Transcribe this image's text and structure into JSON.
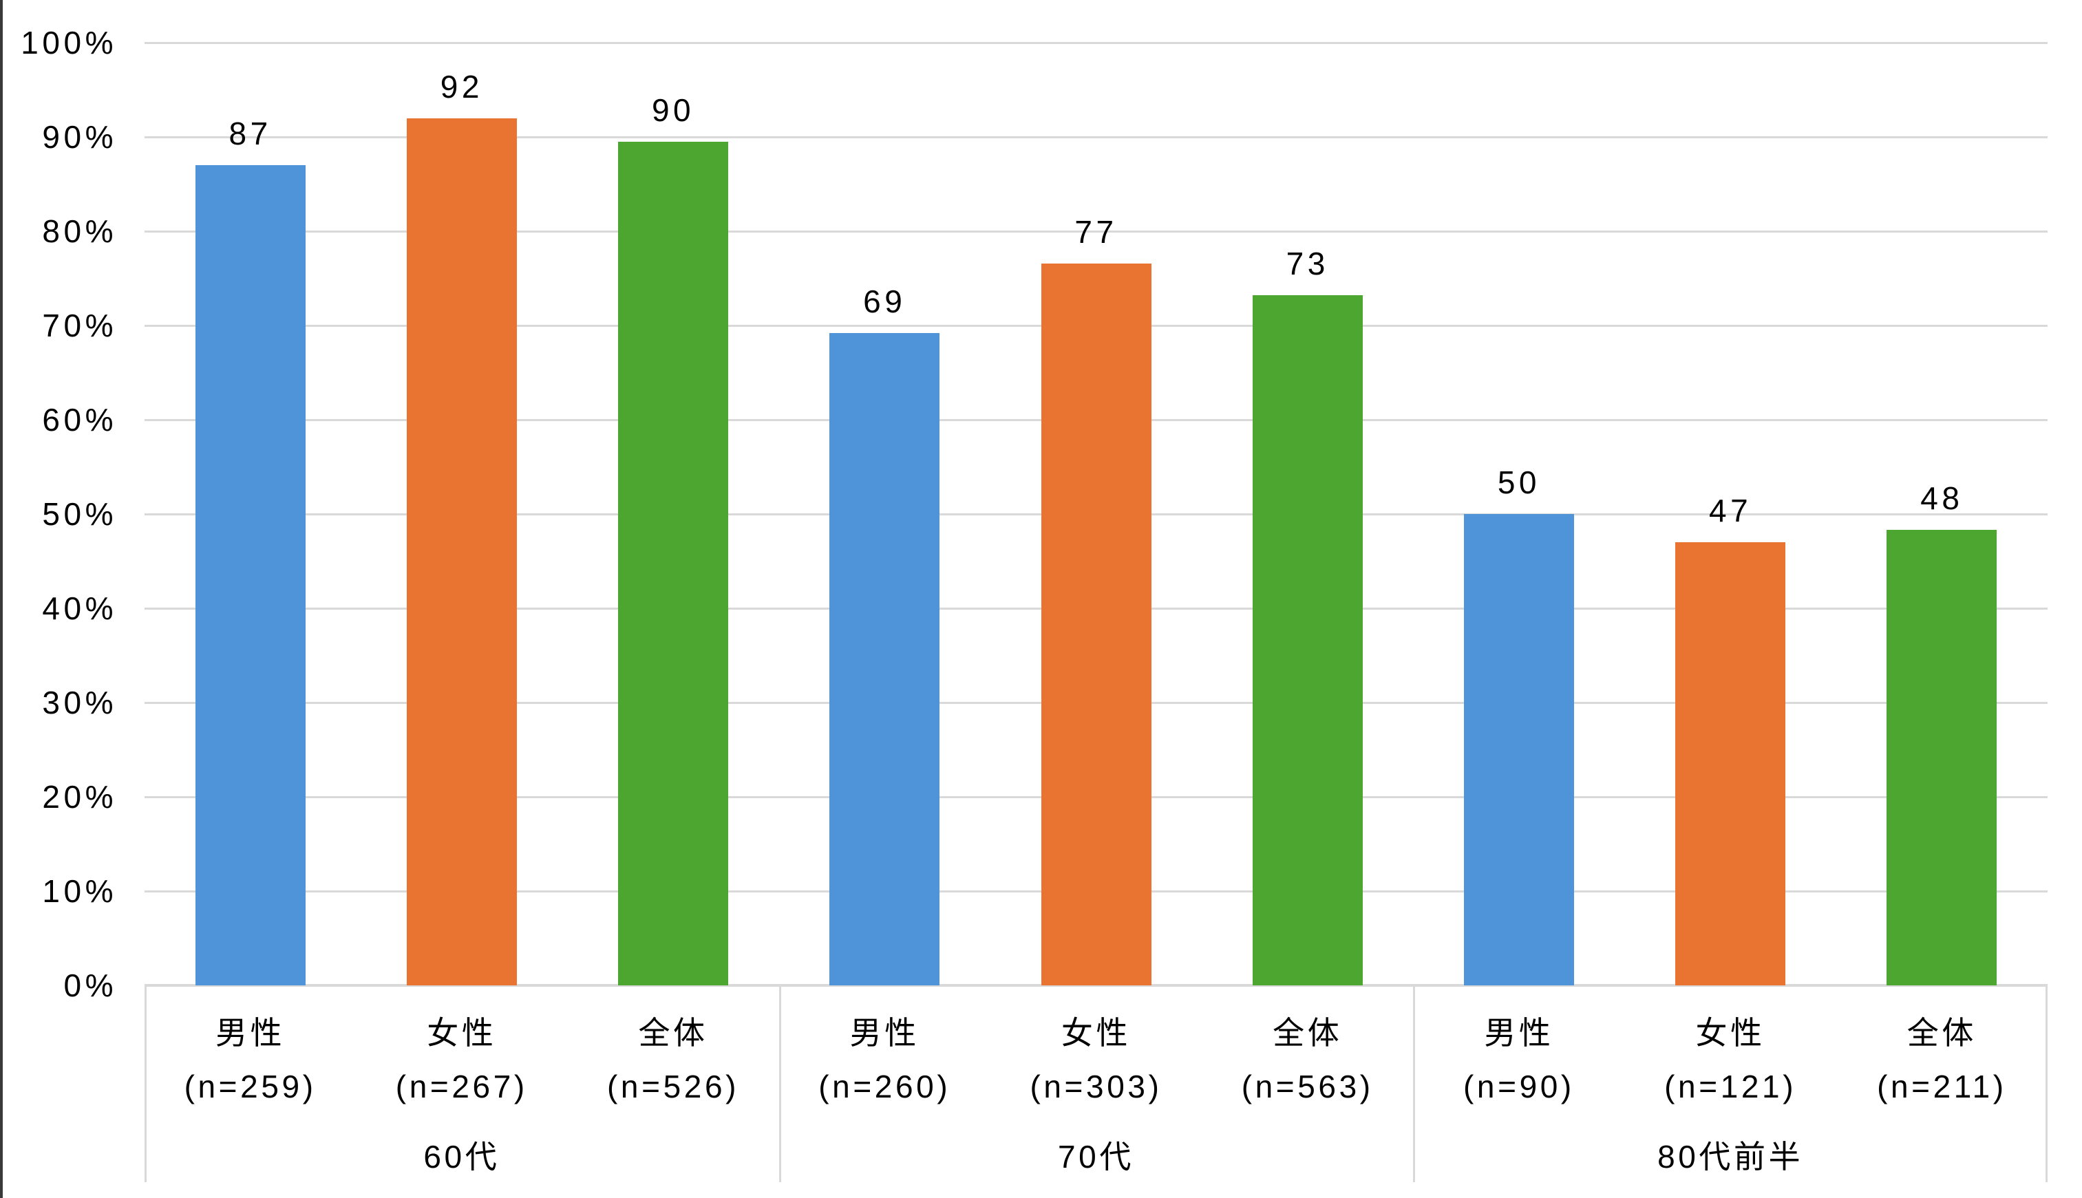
{
  "chart_data": {
    "type": "bar",
    "title": "",
    "xlabel": "",
    "ylabel": "",
    "ylim": [
      0,
      100
    ],
    "y_tick_step": 10,
    "y_tick_labels": [
      "0%",
      "10%",
      "20%",
      "30%",
      "40%",
      "50%",
      "60%",
      "70%",
      "80%",
      "90%",
      "100%"
    ],
    "grid": true,
    "legend_position": "none",
    "series_names": [
      "男性",
      "女性",
      "全体"
    ],
    "series_colors": {
      "男性": "#4F93D8",
      "女性": "#E97432",
      "全体": "#4CA62F"
    },
    "groups": [
      {
        "label": "60代",
        "bars": [
          {
            "series": "男性",
            "sublabel": "(n=259)",
            "value": 87,
            "bar_top_pct": 87.0
          },
          {
            "series": "女性",
            "sublabel": "(n=267)",
            "value": 92,
            "bar_top_pct": 92.0
          },
          {
            "series": "全体",
            "sublabel": "(n=526)",
            "value": 90,
            "bar_top_pct": 89.5
          }
        ]
      },
      {
        "label": "70代",
        "bars": [
          {
            "series": "男性",
            "sublabel": "(n=260)",
            "value": 69,
            "bar_top_pct": 69.2
          },
          {
            "series": "女性",
            "sublabel": "(n=303)",
            "value": 77,
            "bar_top_pct": 76.6
          },
          {
            "series": "全体",
            "sublabel": "(n=563)",
            "value": 73,
            "bar_top_pct": 73.2
          }
        ]
      },
      {
        "label": "80代前半",
        "bars": [
          {
            "series": "男性",
            "sublabel": "(n=90)",
            "value": 50,
            "bar_top_pct": 50.0
          },
          {
            "series": "女性",
            "sublabel": "(n=121)",
            "value": 47,
            "bar_top_pct": 47.0
          },
          {
            "series": "全体",
            "sublabel": "(n=211)",
            "value": 48,
            "bar_top_pct": 48.3
          }
        ]
      }
    ]
  },
  "style_colors": {
    "gridline": "#D9D9D9",
    "axis_border": "#D9D9D9",
    "text": "#000000",
    "left_edge_line": "#3A3A3A",
    "background": "#FFFFFF"
  }
}
